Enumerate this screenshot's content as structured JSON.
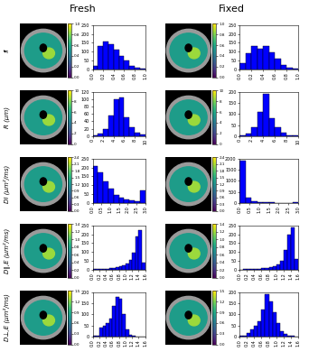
{
  "chart_data": [
    {
      "type": "histogram",
      "title": "Fresh",
      "row_label": "fI",
      "color": "#0000ff",
      "bins": [
        0.0,
        0.1,
        0.2,
        0.3,
        0.4,
        0.5,
        0.6,
        0.7,
        0.8,
        0.9,
        1.0
      ],
      "counts": [
        20,
        130,
        160,
        140,
        110,
        75,
        50,
        20,
        8,
        3
      ],
      "xlim": [
        0.0,
        1.0
      ],
      "xticks": [
        0.0,
        0.2,
        0.4,
        0.6,
        0.8,
        1.0
      ],
      "ylim": [
        0,
        250
      ],
      "yticks": [
        0,
        50,
        100,
        150,
        200,
        250
      ],
      "colorbar": {
        "lim": [
          0.0,
          1.0
        ],
        "ticks": [
          0.0,
          0.2,
          0.4,
          0.6,
          0.8,
          1.0
        ]
      }
    },
    {
      "type": "histogram",
      "title": "Fixed",
      "color": "#0000ff",
      "bins": [
        0.0,
        0.1,
        0.2,
        0.3,
        0.4,
        0.5,
        0.6,
        0.7,
        0.8,
        0.9,
        1.0
      ],
      "counts": [
        35,
        90,
        130,
        115,
        130,
        95,
        60,
        25,
        10,
        4
      ],
      "xlim": [
        0.0,
        1.0
      ],
      "xticks": [
        0.0,
        0.2,
        0.4,
        0.6,
        0.8,
        1.0
      ],
      "ylim": [
        0,
        250
      ],
      "yticks": [
        0,
        50,
        100,
        150,
        200,
        250
      ],
      "colorbar": {
        "lim": [
          0.0,
          1.0
        ],
        "ticks": [
          0.0,
          0.2,
          0.4,
          0.6,
          0.8,
          1.0
        ]
      }
    },
    {
      "type": "histogram",
      "row_label": "R (μm)",
      "color": "#0000ff",
      "bins": [
        0,
        1,
        2,
        3,
        4,
        5,
        6,
        7,
        8,
        9,
        10
      ],
      "counts": [
        2,
        6,
        20,
        55,
        100,
        105,
        50,
        25,
        10,
        5
      ],
      "xlim": [
        0,
        10
      ],
      "xticks": [
        0,
        2,
        4,
        6,
        8,
        10
      ],
      "ylim": [
        0,
        120
      ],
      "yticks": [
        0,
        20,
        40,
        60,
        80,
        100,
        120
      ],
      "colorbar": {
        "lim": [
          0,
          10
        ],
        "ticks": [
          0,
          2,
          4,
          6,
          8,
          10
        ]
      }
    },
    {
      "type": "histogram",
      "color": "#0000ff",
      "bins": [
        0,
        1,
        2,
        3,
        4,
        5,
        6,
        7,
        8,
        9,
        10
      ],
      "counts": [
        2,
        10,
        40,
        110,
        190,
        80,
        40,
        15,
        5,
        3
      ],
      "xlim": [
        0,
        10
      ],
      "xticks": [
        0,
        2,
        4,
        6,
        8,
        10
      ],
      "ylim": [
        0,
        200
      ],
      "yticks": [
        0,
        50,
        100,
        150,
        200
      ],
      "colorbar": {
        "lim": [
          0,
          10
        ],
        "ticks": [
          0,
          2,
          4,
          6,
          8,
          10
        ]
      }
    },
    {
      "type": "histogram",
      "row_label": "DI (μm²/ms)",
      "color": "#0000ff",
      "bins": [
        0.0,
        0.3,
        0.6,
        0.9,
        1.2,
        1.5,
        1.8,
        2.1,
        2.4,
        2.7,
        3.0
      ],
      "counts": [
        210,
        175,
        120,
        80,
        45,
        30,
        20,
        12,
        8,
        70
      ],
      "xlim": [
        0.0,
        3.0
      ],
      "xticks": [
        0.0,
        0.5,
        1.0,
        1.5,
        2.0,
        2.5,
        3.0
      ],
      "ylim": [
        0,
        250
      ],
      "yticks": [
        0,
        50,
        100,
        150,
        200,
        250
      ],
      "colorbar": {
        "lim": [
          0.0,
          2.4
        ],
        "ticks": [
          0.0,
          0.3,
          0.6,
          0.9,
          1.2,
          1.5,
          1.8,
          2.1,
          2.4
        ]
      }
    },
    {
      "type": "histogram",
      "color": "#0000ff",
      "bins": [
        0.0,
        0.3,
        0.6,
        0.9,
        1.2,
        1.5,
        1.8,
        2.1,
        2.4,
        2.7,
        3.0
      ],
      "counts": [
        1900,
        250,
        80,
        40,
        25,
        15,
        10,
        8,
        5,
        25
      ],
      "xlim": [
        0.0,
        3.0
      ],
      "xticks": [
        0.0,
        0.5,
        1.0,
        1.5,
        2.0,
        2.5,
        3.0
      ],
      "ylim": [
        0,
        2000
      ],
      "yticks": [
        0,
        500,
        1000,
        1500,
        2000
      ],
      "colorbar": {
        "lim": [
          0.0,
          2.4
        ],
        "ticks": [
          0.0,
          0.3,
          0.6,
          0.9,
          1.2,
          1.5,
          1.8,
          2.1,
          2.4
        ]
      }
    },
    {
      "type": "histogram",
      "row_label": "D∥,E (μm²/ms)",
      "color": "#0000ff",
      "bins": [
        0.0,
        0.1,
        0.2,
        0.3,
        0.4,
        0.5,
        0.6,
        0.7,
        0.8,
        0.9,
        1.0,
        1.1,
        1.2,
        1.3,
        1.4,
        1.5,
        1.6
      ],
      "counts": [
        2,
        2,
        4,
        5,
        6,
        8,
        10,
        14,
        18,
        25,
        35,
        55,
        95,
        190,
        225,
        40
      ],
      "xlim": [
        0.0,
        1.6
      ],
      "xticks": [
        0.0,
        0.2,
        0.4,
        0.6,
        0.8,
        1.0,
        1.2,
        1.4,
        1.6
      ],
      "ylim": [
        0,
        250
      ],
      "yticks": [
        0,
        50,
        100,
        150,
        200,
        250
      ],
      "colorbar": {
        "lim": [
          0.0,
          1.4
        ],
        "ticks": [
          0.0,
          0.2,
          0.4,
          0.6,
          0.8,
          1.0,
          1.2,
          1.4
        ]
      }
    },
    {
      "type": "histogram",
      "color": "#0000ff",
      "bins": [
        0.0,
        0.1,
        0.2,
        0.3,
        0.4,
        0.5,
        0.6,
        0.7,
        0.8,
        0.9,
        1.0,
        1.1,
        1.2,
        1.3,
        1.4,
        1.5,
        1.6
      ],
      "counts": [
        1,
        2,
        3,
        4,
        5,
        6,
        8,
        10,
        14,
        20,
        30,
        50,
        110,
        200,
        240,
        60
      ],
      "xlim": [
        0.0,
        1.6
      ],
      "xticks": [
        0.0,
        0.2,
        0.4,
        0.6,
        0.8,
        1.0,
        1.2,
        1.4,
        1.6
      ],
      "ylim": [
        0,
        250
      ],
      "yticks": [
        0,
        50,
        100,
        150,
        200,
        250
      ],
      "colorbar": {
        "lim": [
          0.0,
          1.4
        ],
        "ticks": [
          0.0,
          0.2,
          0.4,
          0.6,
          0.8,
          1.0,
          1.2,
          1.4
        ]
      }
    },
    {
      "type": "histogram",
      "row_label": "D⊥,E (μm²/ms)",
      "color": "#0000ff",
      "bins": [
        0.0,
        0.1,
        0.2,
        0.3,
        0.4,
        0.5,
        0.6,
        0.7,
        0.8,
        0.9,
        1.0,
        1.1,
        1.2,
        1.3,
        1.4,
        1.5,
        1.6
      ],
      "counts": [
        2,
        4,
        40,
        50,
        60,
        80,
        140,
        180,
        170,
        100,
        30,
        8,
        3,
        1,
        0,
        0
      ],
      "xlim": [
        0.0,
        1.6
      ],
      "xticks": [
        0.0,
        0.2,
        0.4,
        0.6,
        0.8,
        1.0,
        1.2,
        1.4,
        1.6
      ],
      "ylim": [
        0,
        200
      ],
      "yticks": [
        0,
        50,
        100,
        150,
        200
      ],
      "colorbar": {
        "lim": [
          0.0,
          1.5
        ],
        "ticks": [
          0.0,
          0.3,
          0.6,
          0.9,
          1.2,
          1.5
        ]
      }
    },
    {
      "type": "histogram",
      "color": "#0000ff",
      "bins": [
        0.0,
        0.1,
        0.2,
        0.3,
        0.4,
        0.5,
        0.6,
        0.7,
        0.8,
        0.9,
        1.0,
        1.1,
        1.2,
        1.3,
        1.4,
        1.5,
        1.6
      ],
      "counts": [
        2,
        3,
        15,
        30,
        50,
        70,
        120,
        190,
        160,
        110,
        60,
        25,
        10,
        4,
        2,
        1
      ],
      "xlim": [
        0.0,
        1.6
      ],
      "xticks": [
        0.0,
        0.2,
        0.4,
        0.6,
        0.8,
        1.0,
        1.2,
        1.4,
        1.6
      ],
      "ylim": [
        0,
        200
      ],
      "yticks": [
        0,
        50,
        100,
        150,
        200
      ],
      "colorbar": {
        "lim": [
          0.0,
          1.5
        ],
        "ticks": [
          0.0,
          0.3,
          0.6,
          0.9,
          1.2,
          1.5
        ]
      }
    }
  ]
}
